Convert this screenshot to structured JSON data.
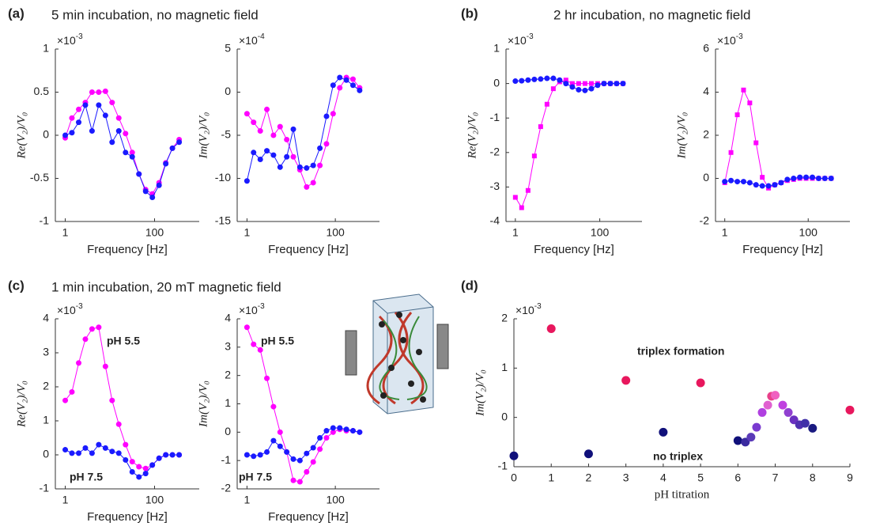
{
  "panels": [
    {
      "label": "(a)",
      "title": "5 min incubation, no magnetic field"
    },
    {
      "label": "(b)",
      "title": "2 hr incubation, no magnetic field"
    },
    {
      "label": "(c)",
      "title": "1 min incubation, 20 mT magnetic field"
    },
    {
      "label": "(d)"
    }
  ],
  "chart_data": [
    {
      "type": "line",
      "ylabel": "Re(V₂)/V₀",
      "y_multiplier": {
        "base": "×10",
        "exponent": "-3"
      },
      "xlabel": "Frequency [Hz]",
      "xscale": "log",
      "x": [
        1,
        1.41,
        2,
        2.82,
        3.98,
        5.62,
        7.94,
        11.2,
        15.8,
        22.4,
        31.6,
        44.7,
        63.1,
        89.1,
        126,
        178,
        251,
        355
      ],
      "xlim": [
        0.6,
        1000
      ],
      "xticks": [
        1,
        100
      ],
      "ylim": [
        -1,
        1
      ],
      "yticks": [
        -1,
        -0.5,
        0,
        0.5,
        1
      ],
      "series": [
        {
          "color": "#ff00ff",
          "marker": "circle",
          "values": [
            -0.03,
            0.2,
            0.3,
            0.38,
            0.5,
            0.5,
            0.51,
            0.38,
            0.2,
            0.02,
            -0.2,
            -0.45,
            -0.63,
            -0.68,
            -0.55,
            -0.32,
            -0.15,
            -0.05
          ]
        },
        {
          "color": "#1a1aff",
          "marker": "circle",
          "values": [
            0,
            0.03,
            0.15,
            0.35,
            0.05,
            0.35,
            0.23,
            -0.08,
            0.05,
            -0.2,
            -0.25,
            -0.45,
            -0.65,
            -0.72,
            -0.58,
            -0.33,
            -0.15,
            -0.08
          ]
        }
      ]
    },
    {
      "type": "line",
      "ylabel": "Im(V₂)/V₀",
      "y_multiplier": {
        "base": "×10",
        "exponent": "-4"
      },
      "xlabel": "Frequency [Hz]",
      "xscale": "log",
      "x": [
        1,
        1.41,
        2,
        2.82,
        3.98,
        5.62,
        7.94,
        11.2,
        15.8,
        22.4,
        31.6,
        44.7,
        63.1,
        89.1,
        126,
        178,
        251,
        355
      ],
      "xlim": [
        0.6,
        1000
      ],
      "xticks": [
        1,
        100
      ],
      "ylim": [
        -15,
        5
      ],
      "yticks": [
        -15,
        -10,
        -5,
        0,
        5
      ],
      "series": [
        {
          "color": "#ff00ff",
          "marker": "circle",
          "values": [
            -2.5,
            -3.5,
            -4.5,
            -2,
            -5,
            -4,
            -5.5,
            -7.5,
            -9,
            -11,
            -10.5,
            -8.5,
            -6,
            -2.5,
            0.5,
            1.7,
            1.5,
            0.5
          ]
        },
        {
          "color": "#1a1aff",
          "marker": "circle",
          "values": [
            -10.3,
            -7,
            -7.8,
            -6.8,
            -7.3,
            -8.7,
            -7.5,
            -4.3,
            -8.7,
            -8.8,
            -8.5,
            -6.5,
            -2.8,
            0.8,
            1.7,
            1.4,
            0.8,
            0.2
          ]
        }
      ]
    },
    {
      "type": "line",
      "ylabel": "Re(V₂)/V₀",
      "y_multiplier": {
        "base": "×10",
        "exponent": "-3"
      },
      "xlabel": "Frequency [Hz]",
      "xscale": "log",
      "x": [
        1,
        1.41,
        2,
        2.82,
        3.98,
        5.62,
        7.94,
        11.2,
        15.8,
        22.4,
        31.6,
        44.7,
        63.1,
        89.1,
        126,
        178,
        251,
        355
      ],
      "xlim": [
        0.6,
        1000
      ],
      "xticks": [
        1,
        100
      ],
      "ylim": [
        -4,
        1
      ],
      "yticks": [
        -4,
        -3,
        -2,
        -1,
        0,
        1
      ],
      "series": [
        {
          "color": "#ff00ff",
          "marker": "square",
          "values": [
            -3.3,
            -3.6,
            -3.1,
            -2.1,
            -1.25,
            -0.6,
            -0.15,
            0.05,
            0.1,
            0,
            0,
            0,
            0,
            0,
            0,
            0,
            0,
            0
          ]
        },
        {
          "color": "#1a1aff",
          "marker": "circle",
          "values": [
            0.07,
            0.08,
            0.1,
            0.12,
            0.13,
            0.15,
            0.15,
            0.1,
            0,
            -0.1,
            -0.18,
            -0.2,
            -0.15,
            -0.05,
            0,
            0,
            0,
            0
          ]
        }
      ]
    },
    {
      "type": "line",
      "ylabel": "Im(V₂)/V₀",
      "y_multiplier": {
        "base": "×10",
        "exponent": "-3"
      },
      "xlabel": "Frequency [Hz]",
      "xscale": "log",
      "x": [
        1,
        1.41,
        2,
        2.82,
        3.98,
        5.62,
        7.94,
        11.2,
        15.8,
        22.4,
        31.6,
        44.7,
        63.1,
        89.1,
        126,
        178,
        251,
        355
      ],
      "xlim": [
        0.6,
        1000
      ],
      "xticks": [
        1,
        100
      ],
      "ylim": [
        -2,
        6
      ],
      "yticks": [
        -2,
        0,
        2,
        4,
        6
      ],
      "series": [
        {
          "color": "#ff00ff",
          "marker": "square",
          "values": [
            -0.2,
            1.2,
            2.95,
            4.1,
            3.5,
            1.65,
            0.05,
            -0.45,
            -0.3,
            -0.2,
            -0.1,
            -0.05,
            0,
            0,
            0,
            0,
            0,
            0
          ]
        },
        {
          "color": "#1a1aff",
          "marker": "circle",
          "values": [
            -0.15,
            -0.1,
            -0.15,
            -0.15,
            -0.2,
            -0.3,
            -0.35,
            -0.35,
            -0.3,
            -0.2,
            -0.05,
            0,
            0.05,
            0.05,
            0.05,
            0,
            0,
            0
          ]
        }
      ]
    },
    {
      "type": "line",
      "ylabel": "Re(V₂)/V₀",
      "y_multiplier": {
        "base": "×10",
        "exponent": "-3"
      },
      "xlabel": "Frequency [Hz]",
      "xscale": "log",
      "x": [
        1,
        1.41,
        2,
        2.82,
        3.98,
        5.62,
        7.94,
        11.2,
        15.8,
        22.4,
        31.6,
        44.7,
        63.1,
        89.1,
        126,
        178,
        251,
        355
      ],
      "xlim": [
        0.6,
        1000
      ],
      "xticks": [
        1,
        100
      ],
      "ylim": [
        -1,
        4
      ],
      "yticks": [
        -1,
        0,
        1,
        2,
        3,
        4
      ],
      "series": [
        {
          "name": "pH 5.5",
          "color": "#ff00ff",
          "marker": "circle",
          "values": [
            1.6,
            1.85,
            2.7,
            3.4,
            3.7,
            3.75,
            2.6,
            1.6,
            0.9,
            0.3,
            -0.2,
            -0.35,
            -0.4,
            -0.3,
            -0.1,
            0,
            0,
            0
          ]
        },
        {
          "name": "pH 7.5",
          "color": "#1a1aff",
          "marker": "circle",
          "values": [
            0.15,
            0.05,
            0.05,
            0.2,
            0.05,
            0.3,
            0.2,
            0.1,
            0.05,
            -0.15,
            -0.5,
            -0.65,
            -0.55,
            -0.3,
            -0.1,
            0,
            0,
            0
          ]
        }
      ]
    },
    {
      "type": "line",
      "ylabel": "Im(V₂)/V₀",
      "y_multiplier": {
        "base": "×10",
        "exponent": "-3"
      },
      "xlabel": "Frequency [Hz]",
      "xscale": "log",
      "x": [
        1,
        1.41,
        2,
        2.82,
        3.98,
        5.62,
        7.94,
        11.2,
        15.8,
        22.4,
        31.6,
        44.7,
        63.1,
        89.1,
        126,
        178,
        251,
        355
      ],
      "xlim": [
        0.6,
        1000
      ],
      "xticks": [
        1,
        100
      ],
      "ylim": [
        -2,
        4
      ],
      "yticks": [
        -2,
        -1,
        0,
        1,
        2,
        3,
        4
      ],
      "series": [
        {
          "name": "pH 5.5",
          "color": "#ff00ff",
          "marker": "circle",
          "values": [
            3.7,
            3.1,
            2.9,
            1.9,
            0.9,
            0,
            -0.7,
            -1.7,
            -1.75,
            -1.4,
            -1.05,
            -0.6,
            -0.2,
            0,
            0.1,
            0.05,
            0.05,
            0
          ]
        },
        {
          "name": "pH 7.5",
          "color": "#1a1aff",
          "marker": "circle",
          "values": [
            -0.8,
            -0.85,
            -0.8,
            -0.7,
            -0.3,
            -0.5,
            -0.7,
            -0.95,
            -1,
            -0.75,
            -0.55,
            -0.2,
            0.05,
            0.15,
            0.15,
            0.1,
            0.05,
            0
          ]
        }
      ]
    },
    {
      "type": "scatter",
      "ylabel": "Im(V₂)/V₀",
      "y_multiplier": {
        "base": "×10",
        "exponent": "-3"
      },
      "xlabel": "pH titration",
      "x": [
        0,
        1,
        2,
        3,
        4,
        5,
        6,
        6.2,
        6.35,
        6.5,
        6.65,
        6.8,
        6.9,
        7,
        7.2,
        7.35,
        7.5,
        7.65,
        7.8,
        8,
        9
      ],
      "y": [
        -0.78,
        1.8,
        -0.74,
        0.75,
        -0.3,
        0.7,
        -0.47,
        -0.5,
        -0.4,
        -0.2,
        0.1,
        0.25,
        0.43,
        0.45,
        0.25,
        0.1,
        -0.05,
        -0.15,
        -0.12,
        -0.22,
        0.15
      ],
      "colors": [
        "#10107a",
        "#e8175d",
        "#10107a",
        "#e8175d",
        "#10107a",
        "#e8175d",
        "#10107a",
        "#3a2aa0",
        "#5a3ab8",
        "#7a3ad0",
        "#b040e0",
        "#e060d0",
        "#e8408a",
        "#f060c0",
        "#c040e0",
        "#9040d0",
        "#6a30c0",
        "#5030b0",
        "#4030a8",
        "#1a1a80",
        "#e8175d"
      ],
      "xlim": [
        0,
        9
      ],
      "xticks": [
        0,
        1,
        2,
        3,
        4,
        5,
        6,
        7,
        8,
        9
      ],
      "ylim": [
        -1,
        2
      ],
      "yticks": [
        -1,
        0,
        1,
        2
      ],
      "annotations": [
        {
          "text": "triplex formation",
          "color": "#e8175d"
        },
        {
          "text": "no triplex",
          "color": "#10107a"
        }
      ]
    }
  ]
}
